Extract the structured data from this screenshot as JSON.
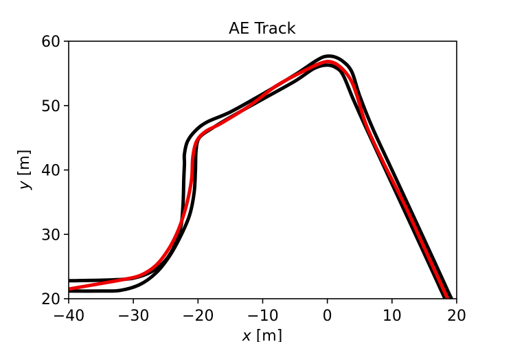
{
  "chart_data": {
    "type": "line",
    "title": "AE Track",
    "xlabel_var": "x",
    "xlabel_unit": " [m]",
    "ylabel_var": "y",
    "ylabel_unit": " [m]",
    "xlim": [
      -40,
      20
    ],
    "ylim": [
      20,
      60
    ],
    "xticks": [
      -40,
      -30,
      -20,
      -10,
      0,
      10,
      20
    ],
    "xtick_labels": [
      "−40",
      "−30",
      "−20",
      "−10",
      "0",
      "10",
      "20"
    ],
    "yticks": [
      20,
      30,
      40,
      50,
      60
    ],
    "ytick_labels": [
      "20",
      "30",
      "40",
      "50",
      "60"
    ],
    "grid": false,
    "series": [
      {
        "color": "#000000",
        "points": [
          [
            -40,
            22.8
          ],
          [
            -34,
            22.9
          ],
          [
            -30,
            23.2
          ],
          [
            -27,
            24.3
          ],
          [
            -25,
            26.0
          ],
          [
            -23.5,
            28.5
          ],
          [
            -22.6,
            31.5
          ],
          [
            -22.3,
            35.0
          ],
          [
            -22.2,
            38.5
          ],
          [
            -22.1,
            41.0
          ],
          [
            -22.1,
            42.5
          ],
          [
            -21.6,
            44.5
          ],
          [
            -20.3,
            46.2
          ],
          [
            -18.5,
            47.5
          ],
          [
            -15,
            49.0
          ],
          [
            -10,
            51.8
          ],
          [
            -5,
            54.8
          ],
          [
            -2,
            56.8
          ],
          [
            -0.5,
            57.6
          ],
          [
            1,
            57.6
          ],
          [
            2.5,
            56.8
          ],
          [
            3.8,
            55.2
          ],
          [
            5,
            51.5
          ],
          [
            7,
            46.5
          ],
          [
            10,
            40.0
          ],
          [
            13,
            33.5
          ],
          [
            16,
            27.0
          ],
          [
            18.5,
            21.5
          ],
          [
            19.2,
            20.0
          ]
        ]
      },
      {
        "color": "#000000",
        "points": [
          [
            -40,
            21.2
          ],
          [
            -35,
            21.2
          ],
          [
            -32,
            21.3
          ],
          [
            -29,
            22.2
          ],
          [
            -26.5,
            24.0
          ],
          [
            -24.5,
            26.5
          ],
          [
            -22.8,
            29.5
          ],
          [
            -21.3,
            33.0
          ],
          [
            -20.6,
            36.5
          ],
          [
            -20.4,
            40.0
          ],
          [
            -20.3,
            43.0
          ],
          [
            -19.8,
            45.0
          ],
          [
            -17.8,
            46.5
          ],
          [
            -15,
            48.2
          ],
          [
            -10,
            51.0
          ],
          [
            -5,
            53.8
          ],
          [
            -2,
            55.8
          ],
          [
            0,
            56.3
          ],
          [
            1.5,
            55.8
          ],
          [
            2.5,
            54.6
          ],
          [
            4,
            51.0
          ],
          [
            6,
            46.5
          ],
          [
            9,
            40.0
          ],
          [
            12,
            33.5
          ],
          [
            15,
            27.0
          ],
          [
            17.5,
            21.5
          ],
          [
            18.2,
            20.0
          ]
        ]
      },
      {
        "color": "#ee0000",
        "points": [
          [
            -40,
            21.5
          ],
          [
            -36,
            22.2
          ],
          [
            -32,
            22.9
          ],
          [
            -29,
            23.6
          ],
          [
            -26.5,
            25.2
          ],
          [
            -24.5,
            27.8
          ],
          [
            -23.0,
            30.8
          ],
          [
            -21.8,
            34.5
          ],
          [
            -21.0,
            38.5
          ],
          [
            -20.8,
            42.0
          ],
          [
            -20.2,
            44.5
          ],
          [
            -18.8,
            46.0
          ],
          [
            -16.5,
            47.2
          ],
          [
            -12,
            50.0
          ],
          [
            -8,
            53.0
          ],
          [
            -4,
            55.2
          ],
          [
            -1,
            56.6
          ],
          [
            0.5,
            56.8
          ],
          [
            2,
            56.0
          ],
          [
            3.5,
            54.2
          ],
          [
            4.5,
            51.8
          ],
          [
            6,
            47.0
          ],
          [
            8.5,
            41.5
          ],
          [
            12,
            34.5
          ],
          [
            14.5,
            29.0
          ],
          [
            17,
            23.5
          ],
          [
            18.6,
            20.0
          ]
        ]
      }
    ]
  }
}
